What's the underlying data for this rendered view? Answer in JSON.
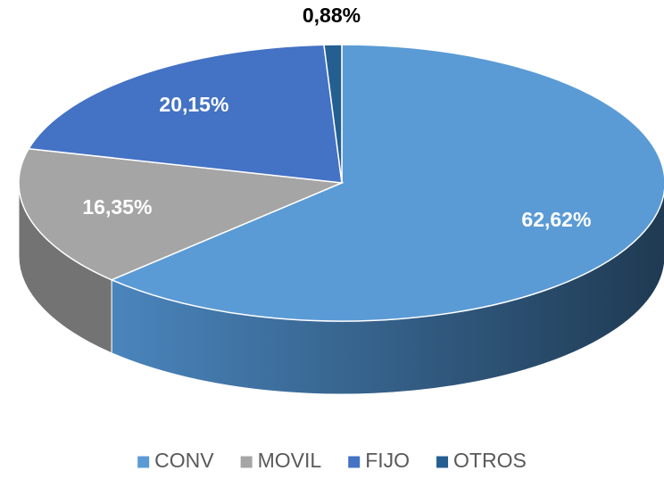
{
  "chart_data": {
    "type": "pie",
    "categories": [
      "CONV",
      "MOVIL",
      "FIJO",
      "OTROS"
    ],
    "values": [
      62.62,
      16.35,
      20.15,
      0.88
    ],
    "value_labels": [
      "62,62%",
      "16,35%",
      "20,15%",
      "0,88%"
    ],
    "colors": [
      "#5b9bd5",
      "#a5a5a5",
      "#4472c4",
      "#255e91"
    ],
    "legend": "bottom"
  }
}
